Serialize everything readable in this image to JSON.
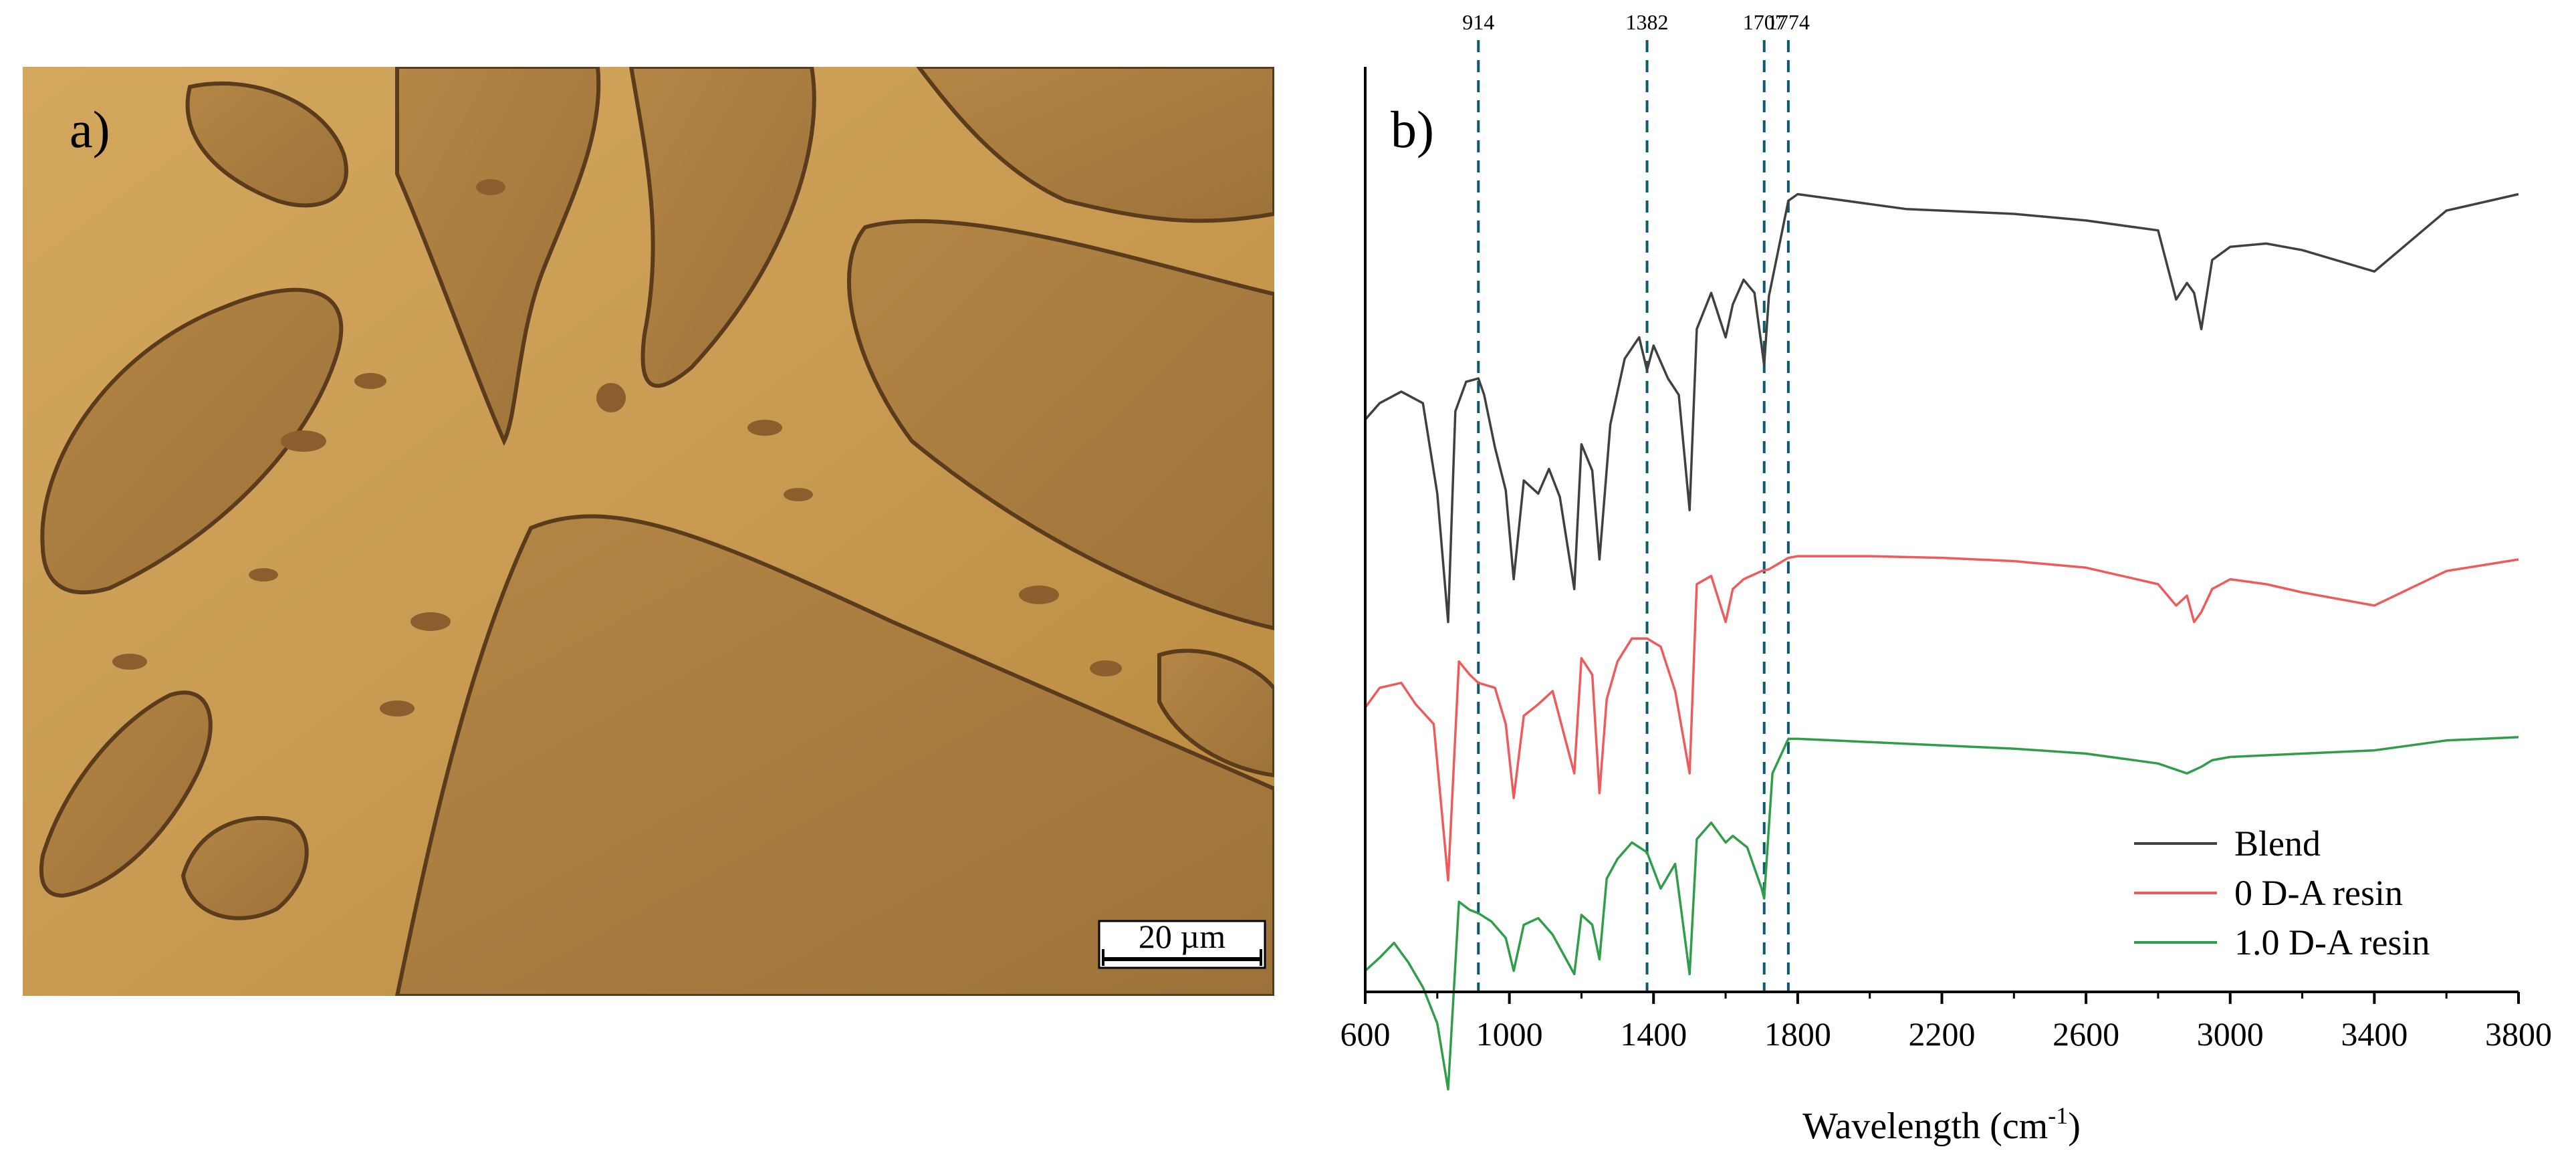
{
  "panel_a": {
    "label": "a)",
    "scale_bar": "20 µm",
    "colors": {
      "matrix": "#c89b52",
      "domain": "#a87c40",
      "edge": "#5a3b1c"
    }
  },
  "chart_data": {
    "type": "line",
    "panel_label": "b)",
    "xlabel": "Wavelength (cm",
    "xlabel_sup": "-1",
    "xlabel_close": ")",
    "xlim": [
      600,
      3800
    ],
    "x_ticks": [
      600,
      1000,
      1400,
      1800,
      2200,
      2600,
      3000,
      3400,
      3800
    ],
    "y_ticks_shown": false,
    "grid": false,
    "legend_position": "bottom-right",
    "reference_lines": [
      {
        "x": 914,
        "label": "914"
      },
      {
        "x": 1382,
        "label": "1382"
      },
      {
        "x": 1707,
        "label": "1707"
      },
      {
        "x": 1774,
        "label": "1774"
      }
    ],
    "series": [
      {
        "name": "Blend",
        "color": "#404040",
        "points": [
          [
            600,
            255
          ],
          [
            640,
            245
          ],
          [
            700,
            238
          ],
          [
            760,
            245
          ],
          [
            800,
            300
          ],
          [
            830,
            378
          ],
          [
            850,
            250
          ],
          [
            880,
            232
          ],
          [
            914,
            230
          ],
          [
            930,
            240
          ],
          [
            960,
            272
          ],
          [
            990,
            298
          ],
          [
            1012,
            352
          ],
          [
            1040,
            292
          ],
          [
            1080,
            300
          ],
          [
            1110,
            285
          ],
          [
            1140,
            302
          ],
          [
            1180,
            358
          ],
          [
            1200,
            270
          ],
          [
            1230,
            286
          ],
          [
            1250,
            340
          ],
          [
            1280,
            258
          ],
          [
            1320,
            218
          ],
          [
            1360,
            205
          ],
          [
            1382,
            225
          ],
          [
            1400,
            210
          ],
          [
            1440,
            230
          ],
          [
            1470,
            240
          ],
          [
            1500,
            310
          ],
          [
            1520,
            200
          ],
          [
            1560,
            178
          ],
          [
            1600,
            205
          ],
          [
            1620,
            185
          ],
          [
            1650,
            170
          ],
          [
            1680,
            178
          ],
          [
            1707,
            222
          ],
          [
            1720,
            180
          ],
          [
            1774,
            122
          ],
          [
            1800,
            118
          ],
          [
            1900,
            121
          ],
          [
            2000,
            124
          ],
          [
            2100,
            127
          ],
          [
            2200,
            128
          ],
          [
            2400,
            130
          ],
          [
            2600,
            134
          ],
          [
            2800,
            140
          ],
          [
            2850,
            182
          ],
          [
            2880,
            172
          ],
          [
            2900,
            178
          ],
          [
            2920,
            200
          ],
          [
            2950,
            158
          ],
          [
            3000,
            150
          ],
          [
            3100,
            148
          ],
          [
            3200,
            152
          ],
          [
            3400,
            165
          ],
          [
            3600,
            128
          ],
          [
            3800,
            118
          ]
        ]
      },
      {
        "name": "0 D-A resin",
        "color": "#ef5a5a",
        "points": [
          [
            600,
            430
          ],
          [
            640,
            418
          ],
          [
            700,
            415
          ],
          [
            740,
            428
          ],
          [
            790,
            440
          ],
          [
            830,
            535
          ],
          [
            860,
            402
          ],
          [
            890,
            410
          ],
          [
            914,
            415
          ],
          [
            960,
            418
          ],
          [
            990,
            440
          ],
          [
            1012,
            485
          ],
          [
            1040,
            435
          ],
          [
            1080,
            428
          ],
          [
            1120,
            420
          ],
          [
            1180,
            470
          ],
          [
            1200,
            400
          ],
          [
            1230,
            410
          ],
          [
            1250,
            482
          ],
          [
            1270,
            425
          ],
          [
            1300,
            402
          ],
          [
            1340,
            388
          ],
          [
            1382,
            388
          ],
          [
            1420,
            393
          ],
          [
            1460,
            420
          ],
          [
            1500,
            470
          ],
          [
            1520,
            355
          ],
          [
            1560,
            350
          ],
          [
            1600,
            378
          ],
          [
            1620,
            358
          ],
          [
            1650,
            352
          ],
          [
            1700,
            347
          ],
          [
            1720,
            346
          ],
          [
            1774,
            339
          ],
          [
            1800,
            338
          ],
          [
            2000,
            338
          ],
          [
            2200,
            339
          ],
          [
            2400,
            341
          ],
          [
            2600,
            345
          ],
          [
            2800,
            355
          ],
          [
            2850,
            368
          ],
          [
            2880,
            362
          ],
          [
            2900,
            378
          ],
          [
            2920,
            372
          ],
          [
            2950,
            358
          ],
          [
            3000,
            352
          ],
          [
            3100,
            355
          ],
          [
            3200,
            360
          ],
          [
            3400,
            368
          ],
          [
            3600,
            347
          ],
          [
            3800,
            340
          ]
        ]
      },
      {
        "name": "1.0 D-A resin",
        "color": "#2e9e4a",
        "points": [
          [
            600,
            590
          ],
          [
            640,
            582
          ],
          [
            680,
            573
          ],
          [
            720,
            585
          ],
          [
            760,
            600
          ],
          [
            800,
            622
          ],
          [
            830,
            662
          ],
          [
            860,
            548
          ],
          [
            890,
            553
          ],
          [
            914,
            555
          ],
          [
            950,
            560
          ],
          [
            990,
            570
          ],
          [
            1012,
            590
          ],
          [
            1040,
            562
          ],
          [
            1080,
            558
          ],
          [
            1120,
            568
          ],
          [
            1180,
            592
          ],
          [
            1200,
            556
          ],
          [
            1230,
            562
          ],
          [
            1250,
            583
          ],
          [
            1270,
            534
          ],
          [
            1300,
            522
          ],
          [
            1340,
            512
          ],
          [
            1382,
            518
          ],
          [
            1420,
            540
          ],
          [
            1460,
            525
          ],
          [
            1500,
            592
          ],
          [
            1520,
            510
          ],
          [
            1560,
            500
          ],
          [
            1600,
            512
          ],
          [
            1620,
            508
          ],
          [
            1660,
            515
          ],
          [
            1700,
            540
          ],
          [
            1707,
            546
          ],
          [
            1730,
            470
          ],
          [
            1774,
            449
          ],
          [
            1800,
            449
          ],
          [
            1900,
            450
          ],
          [
            2000,
            451
          ],
          [
            2100,
            452
          ],
          [
            2200,
            453
          ],
          [
            2400,
            455
          ],
          [
            2600,
            458
          ],
          [
            2800,
            464
          ],
          [
            2880,
            470
          ],
          [
            2920,
            466
          ],
          [
            2950,
            462
          ],
          [
            3000,
            460
          ],
          [
            3100,
            459
          ],
          [
            3200,
            458
          ],
          [
            3400,
            456
          ],
          [
            3600,
            450
          ],
          [
            3800,
            448
          ]
        ]
      }
    ]
  }
}
